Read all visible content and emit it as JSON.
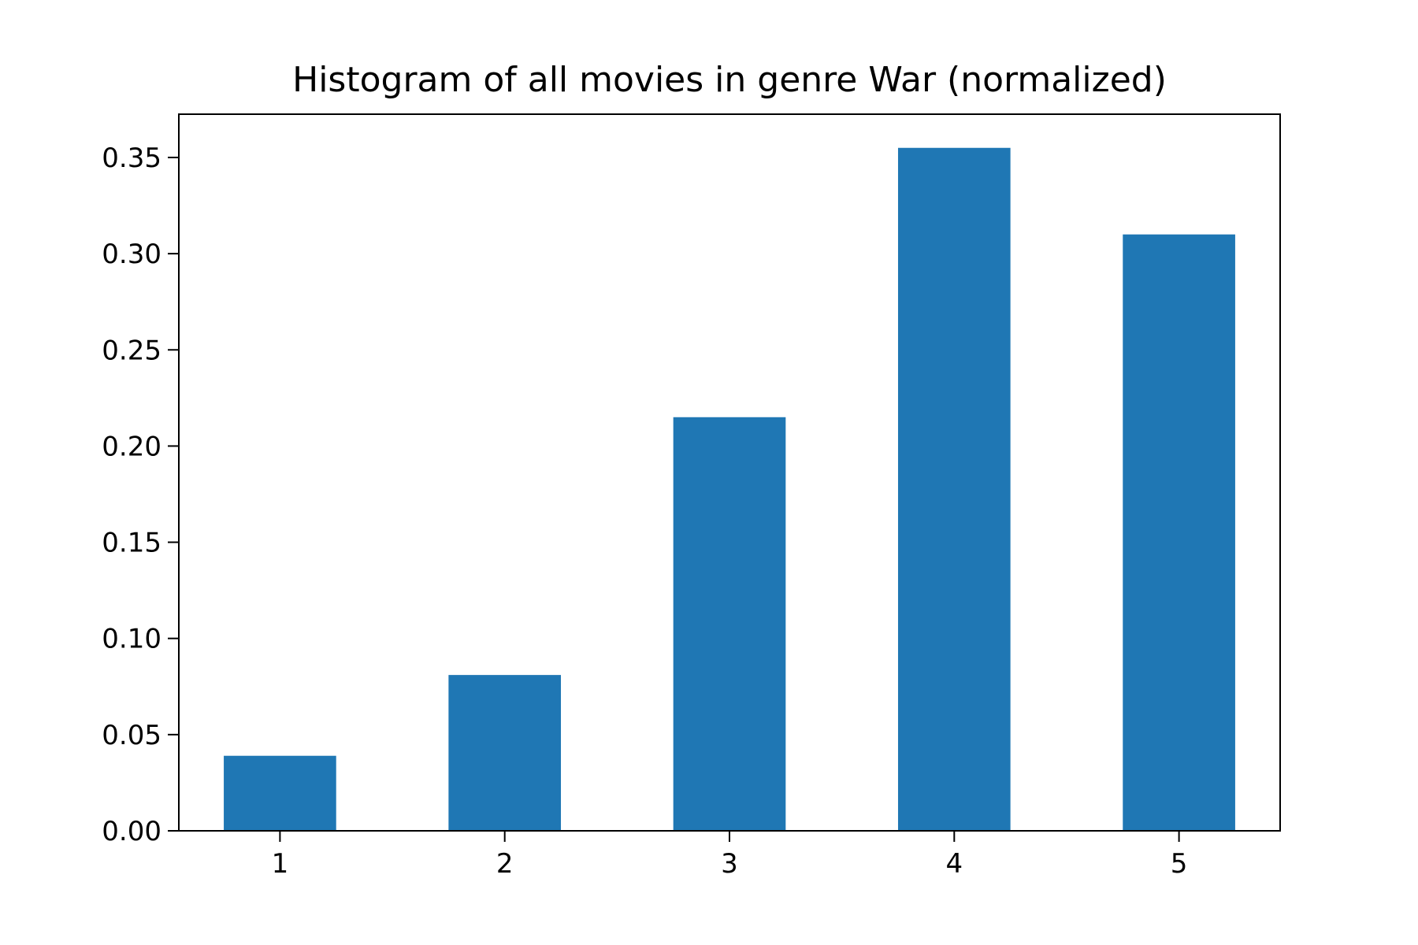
{
  "chart_data": {
    "type": "bar",
    "title": "Histogram of all movies in genre War (normalized)",
    "xlabel": "",
    "ylabel": "",
    "categories": [
      "1",
      "2",
      "3",
      "4",
      "5"
    ],
    "values": [
      0.039,
      0.081,
      0.215,
      0.355,
      0.31
    ],
    "xlim": [
      0.55,
      5.45
    ],
    "ylim": [
      0.0,
      0.3725
    ],
    "yticks": [
      0.0,
      0.05,
      0.1,
      0.15,
      0.2,
      0.25,
      0.3,
      0.35
    ],
    "ytick_labels": [
      "0.00",
      "0.05",
      "0.10",
      "0.15",
      "0.20",
      "0.25",
      "0.30",
      "0.35"
    ],
    "bar_width": 0.5,
    "bar_color": "#1f77b4",
    "grid": false,
    "legend": "none"
  }
}
